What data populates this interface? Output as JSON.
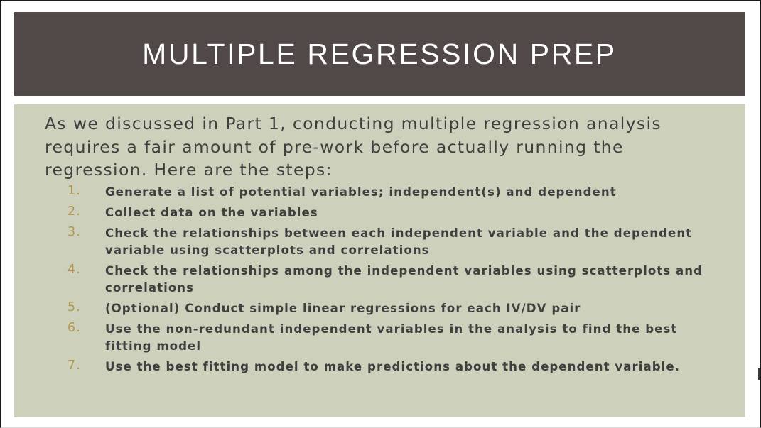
{
  "slide": {
    "title": "MULTIPLE REGRESSION PREP",
    "intro": "As we discussed in Part 1, conducting multiple regression analysis requires a fair amount of pre-work before actually running the regression. Here are the steps:",
    "steps": [
      {
        "num": "1.",
        "text": "Generate a list of potential variables; independent(s) and dependent"
      },
      {
        "num": "2.",
        "text": "Collect data on the variables"
      },
      {
        "num": "3.",
        "text": "Check the relationships between each independent variable and the dependent variable using scatterplots and correlations"
      },
      {
        "num": "4.",
        "text": "Check the relationships among the independent variables using scatterplots and correlations"
      },
      {
        "num": "5.",
        "text": "(Optional) Conduct simple linear regressions for each IV/DV pair"
      },
      {
        "num": "6.",
        "text": "Use the non-redundant independent variables in the analysis to find the best fitting model"
      },
      {
        "num": "7.",
        "text": "Use the best fitting model to make predictions about the dependent variable."
      }
    ]
  },
  "colors": {
    "title_bar": "#514848",
    "content_bg": "#cdd1bc",
    "number_accent": "#b2954e",
    "body_text": "#3f3f3f"
  }
}
